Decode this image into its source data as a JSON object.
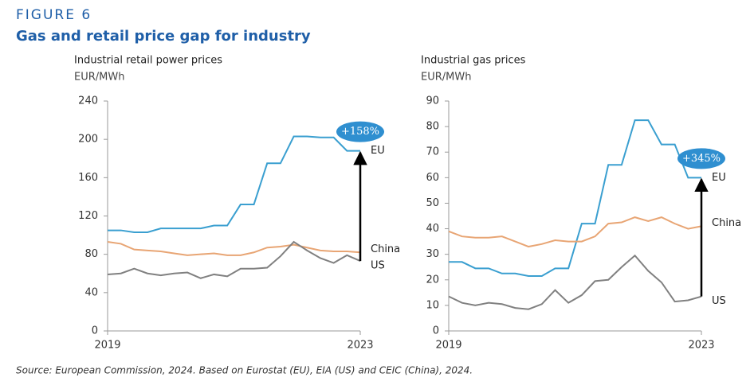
{
  "figure_label": "FIGURE 6",
  "title": "Gas and retail price gap for industry",
  "source": "Source: European Commission, 2024. Based on Eurostat (EU), EIA (US) and CEIC (China), 2024.",
  "chart_data": [
    {
      "type": "line",
      "title": "Industrial retail power prices",
      "y_label": "EUR/MWh",
      "annotation": "+158%",
      "categories": [
        "2019",
        null,
        null,
        null,
        null,
        null,
        null,
        null,
        null,
        null,
        null,
        null,
        null,
        null,
        null,
        null,
        null,
        null,
        null,
        "2023"
      ],
      "ylim": [
        0,
        240
      ],
      "yticks": [
        0,
        40,
        80,
        120,
        160,
        200,
        240
      ],
      "series": [
        {
          "name": "EU",
          "color": "#3a9fd0",
          "values": [
            105,
            105,
            103,
            103,
            107,
            107,
            107,
            107,
            110,
            110,
            132,
            132,
            175,
            175,
            203,
            203,
            202,
            202,
            188,
            188
          ]
        },
        {
          "name": "China",
          "color": "#e8a574",
          "values": [
            93,
            91,
            85,
            84,
            83,
            81,
            79,
            80,
            81,
            79,
            79,
            82,
            87,
            88,
            90,
            87,
            84,
            83,
            83,
            82
          ]
        },
        {
          "name": "US",
          "color": "#808080",
          "values": [
            59,
            60,
            65,
            60,
            58,
            60,
            61,
            55,
            59,
            57,
            65,
            65,
            66,
            78,
            93,
            84,
            76,
            71,
            79,
            73
          ]
        }
      ]
    },
    {
      "type": "line",
      "title": "Industrial gas prices",
      "y_label": "EUR/MWh",
      "annotation": "+345%",
      "categories": [
        "2019",
        null,
        null,
        null,
        null,
        null,
        null,
        null,
        null,
        null,
        null,
        null,
        null,
        null,
        null,
        null,
        null,
        null,
        null,
        "2023"
      ],
      "ylim": [
        0,
        90
      ],
      "yticks": [
        0,
        10,
        20,
        30,
        40,
        50,
        60,
        70,
        80,
        90
      ],
      "series": [
        {
          "name": "EU",
          "color": "#3a9fd0",
          "values": [
            27,
            27,
            24.5,
            24.5,
            22.5,
            22.5,
            21.5,
            21.5,
            24.5,
            24.5,
            42,
            42,
            65,
            65,
            82.5,
            82.5,
            73,
            73,
            60,
            60
          ]
        },
        {
          "name": "China",
          "color": "#e8a574",
          "values": [
            39,
            37,
            36.5,
            36.5,
            37,
            35,
            33,
            34,
            35.5,
            35,
            35,
            37,
            42,
            42.5,
            44.5,
            43,
            44.5,
            42,
            40,
            41
          ]
        },
        {
          "name": "US",
          "color": "#808080",
          "values": [
            13.5,
            11,
            10,
            11,
            10.5,
            9,
            8.5,
            10.5,
            16,
            11,
            14,
            19.5,
            20,
            25,
            29.5,
            23.5,
            19,
            11.5,
            12,
            13.5
          ]
        }
      ]
    }
  ]
}
